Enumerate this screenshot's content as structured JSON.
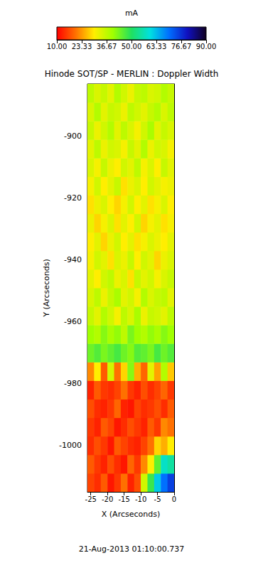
{
  "chart_data": {
    "type": "heatmap",
    "title": "Hinode SOT/SP - MERLIN : Doppler Width",
    "annotation": "21-Aug-2013 01:10:00.737",
    "xlabel": "X (Arcseconds)",
    "ylabel": "Y (Arcseconds)",
    "xlim": [
      -26,
      0
    ],
    "ylim": [
      -1015,
      -883
    ],
    "xticks": [
      -25,
      -20,
      -15,
      -10,
      -5,
      0
    ],
    "yticks": [
      -1000,
      -980,
      -960,
      -940,
      -920,
      -900
    ],
    "x": [
      -25,
      -23,
      -21,
      -19,
      -17,
      -15,
      -13,
      -11,
      -9,
      -7,
      -5,
      -3,
      -1
    ],
    "y": [
      -1012,
      -1006,
      -1000,
      -994,
      -988,
      -982,
      -976,
      -970,
      -964,
      -958,
      -952,
      -946,
      -940,
      -934,
      -928,
      -922,
      -916,
      -910,
      -904,
      -898,
      -892,
      -886
    ],
    "cells": [
      [
        16,
        14,
        18,
        12,
        15,
        20,
        13,
        17,
        35,
        48,
        62,
        70,
        75
      ],
      [
        18,
        15,
        13,
        17,
        14,
        12,
        19,
        15,
        22,
        30,
        45,
        58,
        55
      ],
      [
        14,
        17,
        15,
        12,
        18,
        16,
        14,
        13,
        16,
        20,
        28,
        25,
        30
      ],
      [
        15,
        13,
        18,
        16,
        12,
        14,
        17,
        15,
        13,
        18,
        15,
        22,
        20
      ],
      [
        17,
        14,
        13,
        15,
        19,
        13,
        12,
        16,
        14,
        15,
        17,
        14,
        18
      ],
      [
        13,
        18,
        15,
        14,
        16,
        20,
        15,
        13,
        17,
        14,
        16,
        19,
        15
      ],
      [
        22,
        30,
        18,
        35,
        20,
        28,
        42,
        25,
        19,
        33,
        24,
        38,
        27
      ],
      [
        44,
        46,
        43,
        45,
        47,
        44,
        42,
        46,
        45,
        43,
        47,
        44,
        46
      ],
      [
        40,
        38,
        42,
        39,
        41,
        37,
        43,
        40,
        38,
        41,
        39,
        42,
        40
      ],
      [
        36,
        33,
        38,
        35,
        31,
        37,
        34,
        39,
        32,
        36,
        35,
        33,
        37
      ],
      [
        34,
        37,
        32,
        36,
        39,
        33,
        35,
        31,
        38,
        34,
        36,
        37,
        33
      ],
      [
        33,
        30,
        35,
        37,
        32,
        34,
        29,
        36,
        33,
        35,
        31,
        34,
        36
      ],
      [
        31,
        35,
        33,
        29,
        34,
        32,
        36,
        30,
        35,
        33,
        28,
        32,
        34
      ],
      [
        30,
        33,
        28,
        32,
        35,
        30,
        33,
        29,
        31,
        34,
        32,
        30,
        33
      ],
      [
        32,
        28,
        31,
        34,
        29,
        33,
        30,
        35,
        28,
        31,
        33,
        29,
        31
      ],
      [
        29,
        32,
        34,
        30,
        28,
        31,
        35,
        30,
        33,
        29,
        31,
        34,
        30
      ],
      [
        31,
        35,
        30,
        33,
        36,
        29,
        32,
        34,
        30,
        35,
        33,
        31,
        32
      ],
      [
        34,
        31,
        36,
        32,
        30,
        35,
        33,
        37,
        31,
        34,
        30,
        36,
        33
      ],
      [
        33,
        37,
        32,
        35,
        34,
        31,
        36,
        33,
        38,
        32,
        35,
        34,
        31
      ],
      [
        36,
        32,
        35,
        38,
        33,
        37,
        34,
        31,
        35,
        39,
        33,
        36,
        34
      ],
      [
        34,
        38,
        33,
        36,
        35,
        32,
        37,
        35,
        33,
        36,
        38,
        34,
        37
      ],
      [
        37,
        34,
        36,
        33,
        38,
        35,
        32,
        36,
        37,
        34,
        35,
        38,
        36
      ]
    ],
    "colorbar": {
      "label": "mA",
      "range": [
        10,
        90
      ],
      "ticks": [
        {
          "value": 10,
          "label": "10.00"
        },
        23.33,
        36.67,
        {
          "value": 50,
          "label": "50.00"
        },
        63.33,
        76.67,
        {
          "value": 90,
          "label": "90.00"
        }
      ]
    }
  }
}
